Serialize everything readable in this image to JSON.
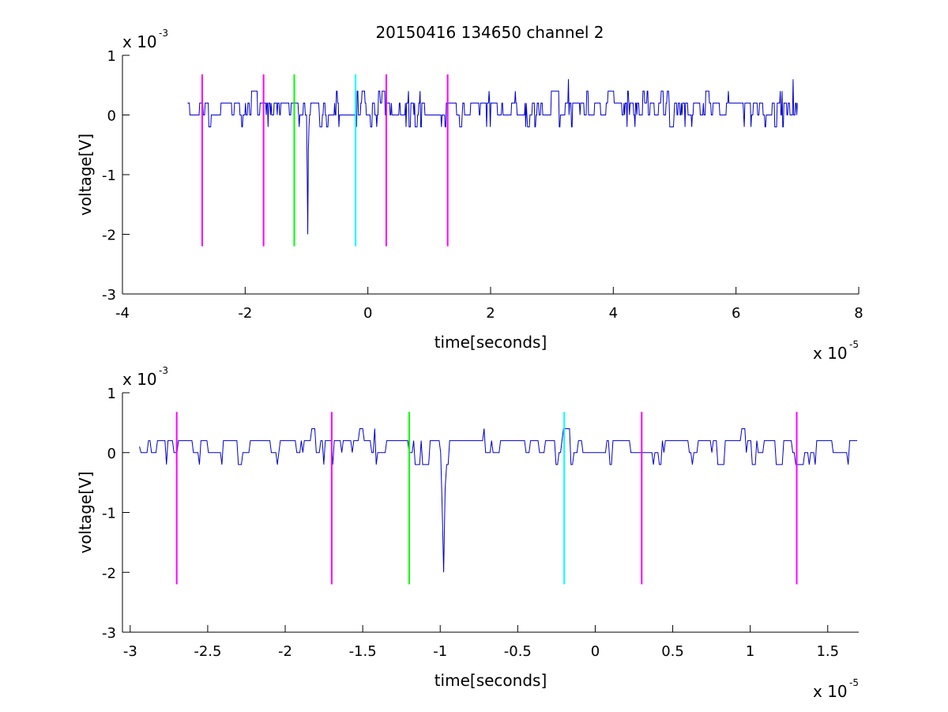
{
  "figure": {
    "title": "20150416 134650 channel 2"
  },
  "chart_data": [
    {
      "type": "line",
      "xlabel": "time[seconds]",
      "ylabel": "voltage[V]",
      "x_multiplier_label": "x 10",
      "x_multiplier_exp": "-5",
      "y_multiplier_label": "x 10",
      "y_multiplier_exp": "-3",
      "xlim": [
        -4,
        8
      ],
      "ylim": [
        -3,
        1
      ],
      "x_ticks": [
        -4,
        -2,
        0,
        2,
        4,
        6,
        8
      ],
      "x_tick_labels": [
        "-4",
        "-2",
        "0",
        "2",
        "4",
        "6",
        "8"
      ],
      "y_ticks": [
        -3,
        -2,
        -1,
        0,
        1
      ],
      "y_tick_labels": [
        "-3",
        "-2",
        "-1",
        "0",
        "1"
      ],
      "grid": false,
      "signal": {
        "color": "#0000cc",
        "x_range": [
          -2.94,
          7.0
        ],
        "baseline": 0.1,
        "levels": [
          -0.2,
          0.0,
          0.2,
          0.4
        ],
        "spikes": [
          {
            "x": -0.98,
            "y": -2.0
          },
          {
            "x": 3.27,
            "y": 0.6
          },
          {
            "x": 6.93,
            "y": 0.6
          }
        ]
      },
      "markers": [
        {
          "x": -2.7,
          "y_top": 0.68,
          "y_bottom": -2.2,
          "color": "#ff00ff"
        },
        {
          "x": -1.7,
          "y_top": 0.68,
          "y_bottom": -2.2,
          "color": "#ff00ff"
        },
        {
          "x": -1.2,
          "y_top": 0.68,
          "y_bottom": -2.2,
          "color": "#00ff00"
        },
        {
          "x": -0.2,
          "y_top": 0.68,
          "y_bottom": -2.2,
          "color": "#00ffff"
        },
        {
          "x": 0.3,
          "y_top": 0.68,
          "y_bottom": -2.2,
          "color": "#ff00ff"
        },
        {
          "x": 1.3,
          "y_top": 0.68,
          "y_bottom": -2.2,
          "color": "#ff00ff"
        }
      ]
    },
    {
      "type": "line",
      "xlabel": "time[seconds]",
      "ylabel": "voltage[V]",
      "x_multiplier_label": "x 10",
      "x_multiplier_exp": "-5",
      "y_multiplier_label": "x 10",
      "y_multiplier_exp": "-3",
      "xlim": [
        -3.05,
        1.7
      ],
      "ylim": [
        -3,
        1
      ],
      "x_ticks": [
        -3,
        -2.5,
        -2,
        -1.5,
        -1,
        -0.5,
        0,
        0.5,
        1,
        1.5
      ],
      "x_tick_labels": [
        "-3",
        "-2.5",
        "-2",
        "-1.5",
        "-1",
        "-0.5",
        "0",
        "0.5",
        "1",
        "1.5"
      ],
      "y_ticks": [
        -3,
        -2,
        -1,
        0,
        1
      ],
      "y_tick_labels": [
        "-3",
        "-2",
        "-1",
        "0",
        "1"
      ],
      "grid": false,
      "signal": {
        "color": "#0000cc",
        "x_range": [
          -2.94,
          1.69
        ],
        "baseline": 0.1,
        "levels": [
          -0.2,
          0.0,
          0.2,
          0.4
        ],
        "spikes": [
          {
            "x": -0.98,
            "y": -2.0
          }
        ]
      },
      "markers": [
        {
          "x": -2.7,
          "y_top": 0.68,
          "y_bottom": -2.2,
          "color": "#ff00ff"
        },
        {
          "x": -1.7,
          "y_top": 0.68,
          "y_bottom": -2.2,
          "color": "#ff00ff"
        },
        {
          "x": -1.2,
          "y_top": 0.68,
          "y_bottom": -2.2,
          "color": "#00ff00"
        },
        {
          "x": -0.2,
          "y_top": 0.68,
          "y_bottom": -2.2,
          "color": "#00ffff"
        },
        {
          "x": 0.3,
          "y_top": 0.68,
          "y_bottom": -2.2,
          "color": "#ff00ff"
        },
        {
          "x": 1.3,
          "y_top": 0.68,
          "y_bottom": -2.2,
          "color": "#ff00ff"
        }
      ]
    }
  ]
}
